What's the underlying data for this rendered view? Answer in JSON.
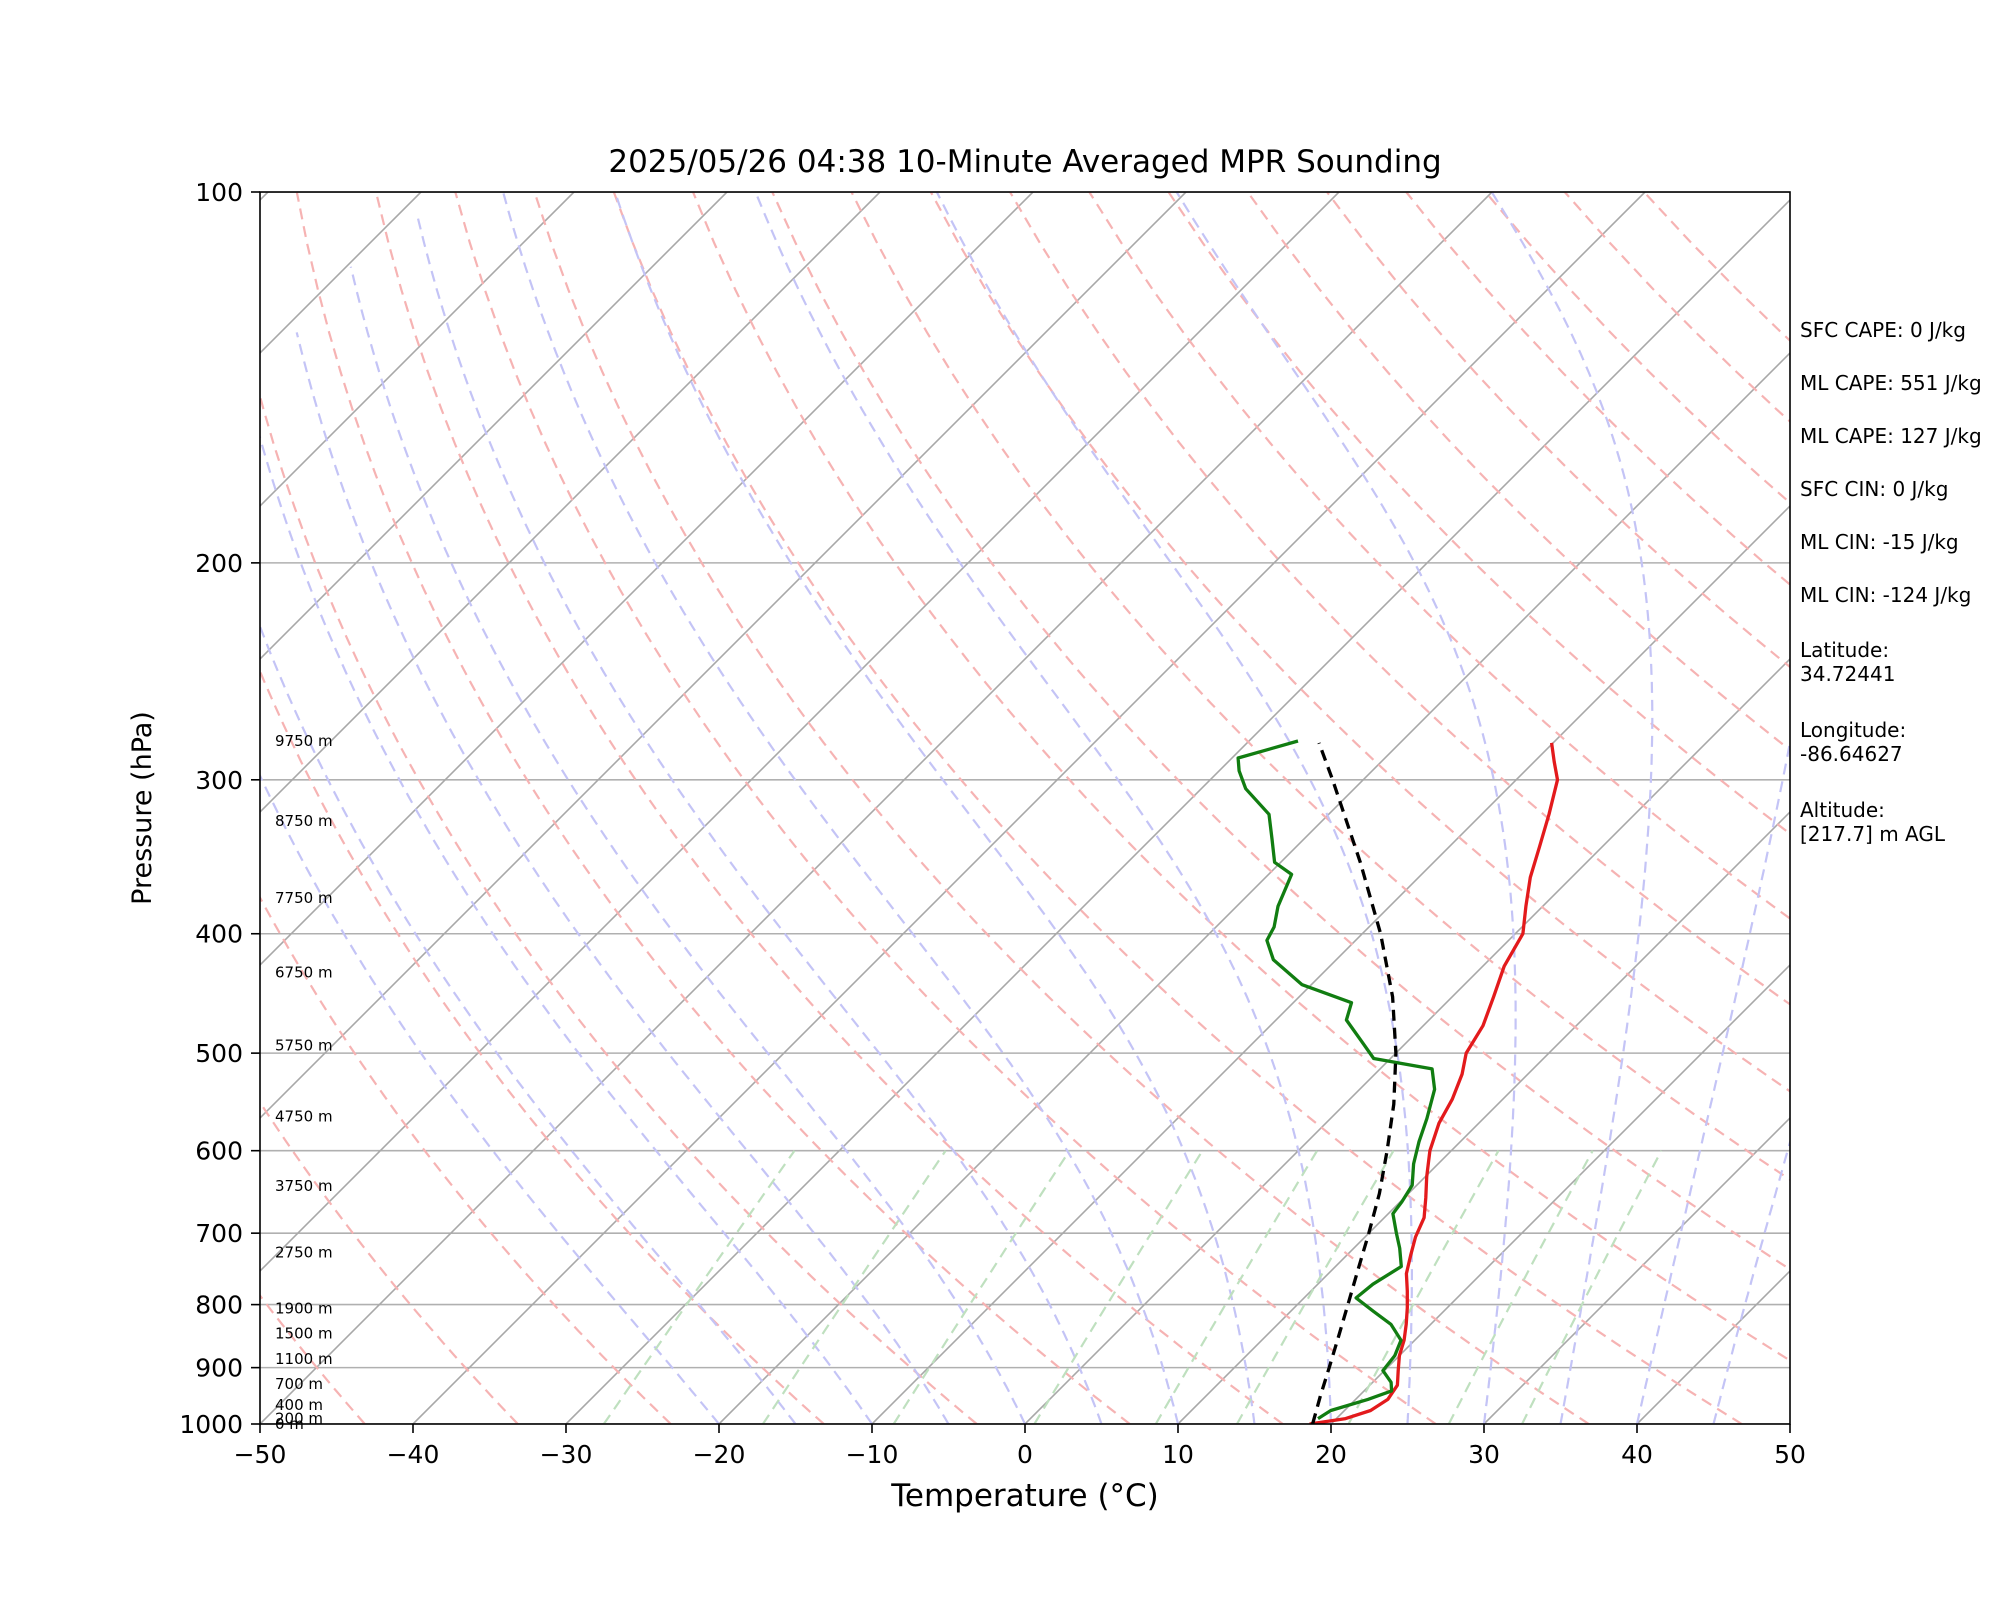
{
  "chart_data": {
    "type": "line",
    "diagram": "skew-T log-P",
    "title": "2025/05/26 04:38 10-Minute Averaged MPR Sounding",
    "xlabel": "Temperature (°C)",
    "ylabel": "Pressure (hPa)",
    "xlim": [
      -50,
      50
    ],
    "ylim": [
      1000,
      100
    ],
    "y_scale": "log",
    "x_ticks": [
      "−50",
      "−40",
      "−30",
      "−20",
      "−10",
      "0",
      "10",
      "20",
      "30",
      "40",
      "50"
    ],
    "y_ticks": [
      "100",
      "200",
      "300",
      "400",
      "500",
      "600",
      "700",
      "800",
      "900",
      "1000"
    ],
    "height_labels": [
      {
        "p": 1000,
        "label": "0 m"
      },
      {
        "p": 990,
        "label": "200 m"
      },
      {
        "p": 965,
        "label": "400 m"
      },
      {
        "p": 928,
        "label": "700 m"
      },
      {
        "p": 886,
        "label": "1100 m"
      },
      {
        "p": 844,
        "label": "1500 m"
      },
      {
        "p": 806,
        "label": "1900 m"
      },
      {
        "p": 726,
        "label": "2750 m"
      },
      {
        "p": 641,
        "label": "3750 m"
      },
      {
        "p": 563,
        "label": "4750 m"
      },
      {
        "p": 493,
        "label": "5750 m"
      },
      {
        "p": 430,
        "label": "6750 m"
      },
      {
        "p": 374,
        "label": "7750 m"
      },
      {
        "p": 324,
        "label": "8750 m"
      },
      {
        "p": 279,
        "label": "9750 m"
      }
    ],
    "series": [
      {
        "color": "#e31a1c",
        "points": [
          [
            1000,
            18.6
          ],
          [
            990,
            20.6
          ],
          [
            975,
            21.7
          ],
          [
            955,
            22.1
          ],
          [
            930,
            21.8
          ],
          [
            905,
            20.9
          ],
          [
            880,
            20.0
          ],
          [
            855,
            19.3
          ],
          [
            830,
            18.4
          ],
          [
            805,
            17.4
          ],
          [
            780,
            16.3
          ],
          [
            755,
            15.1
          ],
          [
            730,
            14.2
          ],
          [
            705,
            13.3
          ],
          [
            680,
            12.6
          ],
          [
            655,
            11.4
          ],
          [
            630,
            10.1
          ],
          [
            600,
            8.6
          ],
          [
            570,
            7.4
          ],
          [
            545,
            6.7
          ],
          [
            520,
            5.7
          ],
          [
            500,
            4.6
          ],
          [
            475,
            3.9
          ],
          [
            450,
            2.7
          ],
          [
            425,
            1.4
          ],
          [
            400,
            0.5
          ],
          [
            380,
            -1.1
          ],
          [
            360,
            -2.7
          ],
          [
            340,
            -4.1
          ],
          [
            320,
            -5.6
          ],
          [
            300,
            -7.3
          ],
          [
            290,
            -8.7
          ],
          [
            280,
            -10.1
          ]
        ]
      },
      {
        "color": "#117d11",
        "points": [
          [
            990,
            18.8
          ],
          [
            975,
            19.1
          ],
          [
            955,
            20.8
          ],
          [
            940,
            21.8
          ],
          [
            925,
            21.2
          ],
          [
            905,
            19.9
          ],
          [
            880,
            19.7
          ],
          [
            855,
            19.1
          ],
          [
            830,
            17.4
          ],
          [
            810,
            15.4
          ],
          [
            790,
            13.4
          ],
          [
            770,
            13.6
          ],
          [
            745,
            14.3
          ],
          [
            720,
            13.0
          ],
          [
            700,
            11.8
          ],
          [
            675,
            10.3
          ],
          [
            660,
            10.1
          ],
          [
            640,
            9.7
          ],
          [
            615,
            8.4
          ],
          [
            590,
            7.3
          ],
          [
            565,
            6.3
          ],
          [
            535,
            4.9
          ],
          [
            515,
            3.4
          ],
          [
            505,
            -1.1
          ],
          [
            490,
            -2.9
          ],
          [
            470,
            -5.4
          ],
          [
            455,
            -6.2
          ],
          [
            440,
            -10.6
          ],
          [
            420,
            -14.1
          ],
          [
            405,
            -15.8
          ],
          [
            395,
            -16.2
          ],
          [
            380,
            -17.3
          ],
          [
            358,
            -18.5
          ],
          [
            350,
            -20.4
          ],
          [
            335,
            -22.1
          ],
          [
            320,
            -23.9
          ],
          [
            305,
            -27.1
          ],
          [
            295,
            -28.7
          ],
          [
            288,
            -29.6
          ],
          [
            279,
            -26.8
          ]
        ]
      },
      {
        "color": "#000000",
        "dashed": true,
        "points": [
          [
            1000,
            18.8
          ],
          [
            950,
            17.5
          ],
          [
            900,
            16.2
          ],
          [
            850,
            14.8
          ],
          [
            800,
            13.3
          ],
          [
            750,
            11.7
          ],
          [
            700,
            10.0
          ],
          [
            650,
            8.1
          ],
          [
            600,
            5.8
          ],
          [
            550,
            3.2
          ],
          [
            500,
            0.0
          ],
          [
            450,
            -3.9
          ],
          [
            400,
            -8.8
          ],
          [
            350,
            -14.8
          ],
          [
            300,
            -22.0
          ],
          [
            280,
            -25.3
          ]
        ]
      }
    ]
  },
  "stats": {
    "sfc_cape": "SFC CAPE: 0 J/kg",
    "ml_cape_1": "ML CAPE: 551 J/kg",
    "ml_cape_2": "ML CAPE: 127 J/kg",
    "sfc_cin": "SFC CIN: 0 J/kg",
    "ml_cin_1": "ML CIN: -15 J/kg",
    "ml_cin_2": "ML CIN: -124 J/kg",
    "latitude": "Latitude:\n34.72441",
    "longitude": "Longitude:\n-86.64627",
    "altitude": "Altitude:\n[217.7] m AGL"
  }
}
